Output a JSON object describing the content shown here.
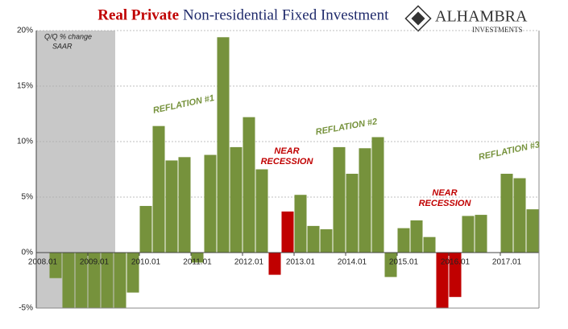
{
  "chart_data": {
    "type": "bar",
    "title_highlight": "Real Private",
    "title": "Non-residential Fixed Investment",
    "logo": {
      "name": "ALHAMBRA",
      "sub": "INVESTMENTS"
    },
    "shade_note": [
      "Q/Q % change",
      "SAAR"
    ],
    "categories": [
      "2008.01",
      null,
      null,
      null,
      "2009.01",
      null,
      null,
      null,
      "2010.01",
      null,
      null,
      null,
      "2011.01",
      null,
      null,
      null,
      "2012.01",
      null,
      null,
      null,
      "2013.01",
      null,
      null,
      null,
      "2014.01",
      null,
      null,
      null,
      "2015.01",
      null,
      null,
      null,
      "2016.01",
      null,
      null,
      null,
      "2017.01",
      null,
      null
    ],
    "values": [
      0,
      -2.3,
      -5,
      -5,
      -5,
      -5,
      -5,
      -3.6,
      4.2,
      11.4,
      8.3,
      8.6,
      -0.9,
      8.8,
      19.4,
      9.5,
      12.2,
      7.5,
      -2,
      3.7,
      5.2,
      2.4,
      2.1,
      9.5,
      7.1,
      9.4,
      10.4,
      -2.2,
      2.2,
      2.9,
      1.4,
      -5,
      -4,
      3.3,
      3.4,
      0,
      7.1,
      6.7,
      3.9
    ],
    "colors": [
      "#76923c",
      "#76923c",
      "#76923c",
      "#76923c",
      "#76923c",
      "#76923c",
      "#76923c",
      "#76923c",
      "#76923c",
      "#76923c",
      "#76923c",
      "#76923c",
      "#76923c",
      "#76923c",
      "#76923c",
      "#76923c",
      "#76923c",
      "#76923c",
      "#c00000",
      "#c00000",
      "#76923c",
      "#76923c",
      "#76923c",
      "#76923c",
      "#76923c",
      "#76923c",
      "#76923c",
      "#76923c",
      "#76923c",
      "#76923c",
      "#76923c",
      "#c00000",
      "#c00000",
      "#76923c",
      "#76923c",
      "#76923c",
      "#76923c",
      "#76923c",
      "#76923c"
    ],
    "ylim": [
      -5,
      20
    ],
    "yticks": [
      {
        "value": -5,
        "label": "-5%"
      },
      {
        "value": 0,
        "label": "0%"
      },
      {
        "value": 5,
        "label": "5%"
      },
      {
        "value": 10,
        "label": "10%"
      },
      {
        "value": 15,
        "label": "15%"
      },
      {
        "value": 20,
        "label": "20%"
      }
    ],
    "grid": true,
    "annotations": [
      {
        "lines": [
          "REFLATION #1"
        ],
        "color": "#76923c"
      },
      {
        "lines": [
          "NEAR",
          "RECESSION"
        ],
        "color": "#c00000"
      },
      {
        "lines": [
          "REFLATION #2"
        ],
        "color": "#76923c"
      },
      {
        "lines": [
          "NEAR",
          "RECESSION"
        ],
        "color": "#c00000"
      },
      {
        "lines": [
          "REFLATION #3"
        ],
        "color": "#76923c"
      }
    ]
  }
}
